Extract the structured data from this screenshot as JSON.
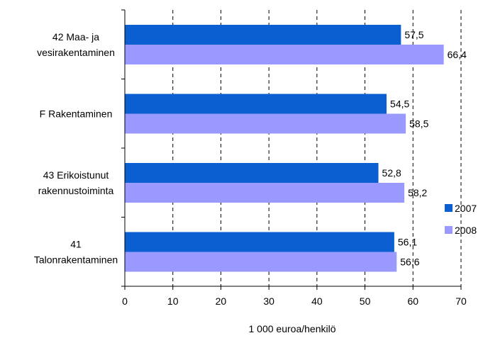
{
  "chart_data": {
    "type": "bar",
    "orientation": "horizontal",
    "categories": [
      [
        "42 Maa- ja",
        "vesirakentaminen"
      ],
      [
        "F Rakentaminen"
      ],
      [
        "43 Erikoistunut",
        "rakennustoiminta"
      ],
      [
        "41",
        "Talonrakentaminen"
      ]
    ],
    "series": [
      {
        "name": "2007",
        "color": "#0b5fd0",
        "values": [
          57.5,
          54.5,
          52.8,
          56.1
        ],
        "labels": [
          "57,5",
          "54,5",
          "52,8",
          "56,1"
        ]
      },
      {
        "name": "2008",
        "color": "#9999ff",
        "values": [
          66.4,
          58.5,
          58.2,
          56.6
        ],
        "labels": [
          "66,4",
          "58,5",
          "58,2",
          "56,6"
        ]
      }
    ],
    "xlim": [
      0,
      70
    ],
    "xticks": [
      0,
      10,
      20,
      30,
      40,
      50,
      60,
      70
    ],
    "xlabel": "1 000 euroa/henkilö",
    "ylabel": "",
    "title": "",
    "grid": "vertical dashed",
    "legend_position": "right"
  }
}
